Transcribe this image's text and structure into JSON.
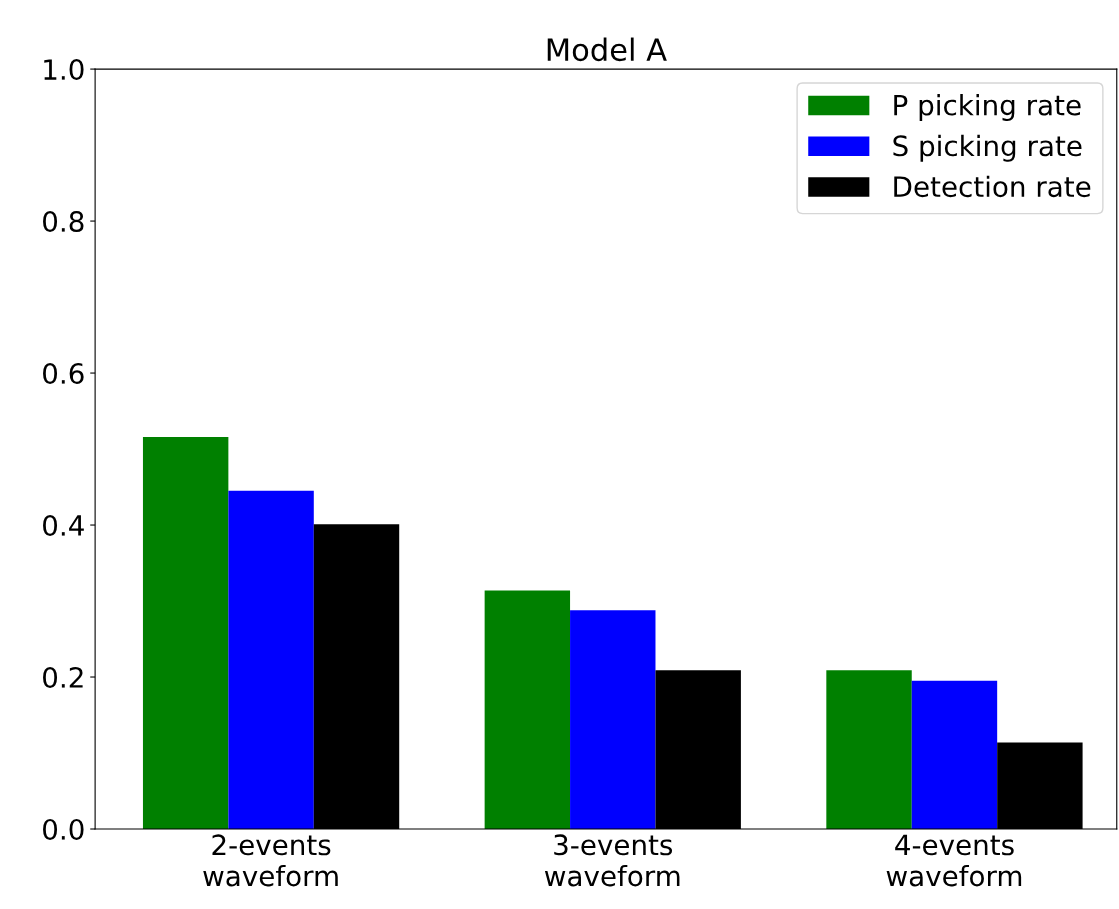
{
  "chart_data": {
    "type": "bar",
    "title": "Model A",
    "categories": [
      "2-events\nwaveform",
      "3-events\nwaveform",
      "4-events\nwaveform"
    ],
    "series": [
      {
        "name": "P picking rate",
        "color": "#008000",
        "values": [
          0.516,
          0.314,
          0.209
        ]
      },
      {
        "name": "S picking rate",
        "color": "#0000ff",
        "values": [
          0.445,
          0.288,
          0.195
        ]
      },
      {
        "name": "Detection rate",
        "color": "#000000",
        "values": [
          0.401,
          0.209,
          0.114
        ]
      }
    ],
    "ylim": [
      0,
      1.0
    ],
    "yticks": [
      {
        "value": 0,
        "label": "0.0"
      },
      {
        "value": 0.2,
        "label": "0.2"
      },
      {
        "value": 0.4,
        "label": "0.4"
      },
      {
        "value": 0.6,
        "label": "0.6"
      },
      {
        "value": 0.8,
        "label": "0.8"
      },
      {
        "value": 1.0,
        "label": "1.0"
      }
    ],
    "grid": false,
    "legend": "top right"
  }
}
